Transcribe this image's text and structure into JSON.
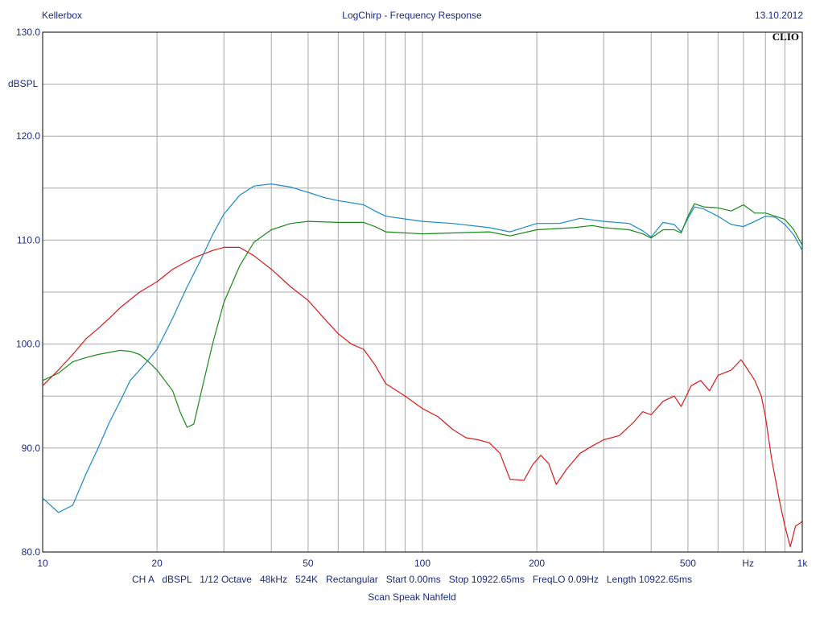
{
  "header": {
    "left": "Kellerbox",
    "center": "LogChirp - Frequency Response",
    "right": "13.10.2012"
  },
  "logo_text": "CLIO",
  "info_line": "CH A   dBSPL   1/12 Octave   48kHz   524K   Rectangular   Start 0.00ms   Stop 10922.65ms   FreqLO 0.09Hz   Length 10922.65ms",
  "subtitle": "Scan Speak Nahfeld",
  "chart_data": {
    "type": "line",
    "x_scale": "log",
    "xlim": [
      10,
      1000
    ],
    "ylim": [
      80,
      130
    ],
    "ylabel": "dBSPL",
    "xunit_label": "Hz",
    "grid": true,
    "x_tick_labels": [
      {
        "value": 10,
        "label": "10"
      },
      {
        "value": 20,
        "label": "20"
      },
      {
        "value": 50,
        "label": "50"
      },
      {
        "value": 100,
        "label": "100"
      },
      {
        "value": 200,
        "label": "200"
      },
      {
        "value": 500,
        "label": "500"
      },
      {
        "value": 1000,
        "label": "1k"
      }
    ],
    "y_tick_labels": [
      {
        "value": 130,
        "label": "130.0"
      },
      {
        "value": 120,
        "label": "120.0"
      },
      {
        "value": 110,
        "label": "110.0"
      },
      {
        "value": 100,
        "label": "100.0"
      },
      {
        "value": 90,
        "label": "90.0"
      },
      {
        "value": 80,
        "label": "80.0"
      }
    ],
    "series": [
      {
        "color": "#1a8ac8",
        "points": [
          [
            10,
            85.2
          ],
          [
            11,
            83.8
          ],
          [
            12,
            84.5
          ],
          [
            13,
            87.5
          ],
          [
            14,
            90
          ],
          [
            15,
            92.5
          ],
          [
            16,
            94.5
          ],
          [
            17,
            96.5
          ],
          [
            18,
            97.5
          ],
          [
            19,
            98.5
          ],
          [
            20,
            99.5
          ],
          [
            22,
            102.5
          ],
          [
            24,
            105.5
          ],
          [
            26,
            108
          ],
          [
            28,
            110.5
          ],
          [
            30,
            112.5
          ],
          [
            33,
            114.3
          ],
          [
            36,
            115.2
          ],
          [
            40,
            115.4
          ],
          [
            45,
            115.1
          ],
          [
            50,
            114.6
          ],
          [
            55,
            114.1
          ],
          [
            60,
            113.8
          ],
          [
            70,
            113.4
          ],
          [
            75,
            112.8
          ],
          [
            80,
            112.3
          ],
          [
            100,
            111.8
          ],
          [
            120,
            111.6
          ],
          [
            150,
            111.2
          ],
          [
            170,
            110.8
          ],
          [
            200,
            111.6
          ],
          [
            230,
            111.6
          ],
          [
            260,
            112.1
          ],
          [
            300,
            111.8
          ],
          [
            350,
            111.6
          ],
          [
            380,
            110.9
          ],
          [
            400,
            110.3
          ],
          [
            430,
            111.7
          ],
          [
            460,
            111.5
          ],
          [
            480,
            110.8
          ],
          [
            500,
            112.1
          ],
          [
            520,
            113.2
          ],
          [
            550,
            113
          ],
          [
            600,
            112.3
          ],
          [
            650,
            111.5
          ],
          [
            700,
            111.3
          ],
          [
            750,
            111.8
          ],
          [
            800,
            112.3
          ],
          [
            850,
            112.2
          ],
          [
            900,
            111.5
          ],
          [
            950,
            110.5
          ],
          [
            1000,
            109
          ]
        ]
      },
      {
        "color": "#1a8a1a",
        "points": [
          [
            10,
            96.5
          ],
          [
            11,
            97.2
          ],
          [
            12,
            98.3
          ],
          [
            13,
            98.7
          ],
          [
            14,
            99
          ],
          [
            15,
            99.2
          ],
          [
            16,
            99.4
          ],
          [
            17,
            99.3
          ],
          [
            18,
            99
          ],
          [
            19,
            98.3
          ],
          [
            20,
            97.5
          ],
          [
            22,
            95.5
          ],
          [
            23,
            93.5
          ],
          [
            24,
            92
          ],
          [
            25,
            92.3
          ],
          [
            26,
            95
          ],
          [
            28,
            100
          ],
          [
            30,
            104
          ],
          [
            33,
            107.5
          ],
          [
            36,
            109.8
          ],
          [
            40,
            111
          ],
          [
            45,
            111.6
          ],
          [
            50,
            111.8
          ],
          [
            60,
            111.7
          ],
          [
            70,
            111.7
          ],
          [
            75,
            111.3
          ],
          [
            80,
            110.8
          ],
          [
            100,
            110.6
          ],
          [
            150,
            110.8
          ],
          [
            170,
            110.4
          ],
          [
            200,
            111
          ],
          [
            250,
            111.2
          ],
          [
            280,
            111.4
          ],
          [
            300,
            111.2
          ],
          [
            350,
            111
          ],
          [
            380,
            110.6
          ],
          [
            400,
            110.2
          ],
          [
            430,
            111
          ],
          [
            460,
            111
          ],
          [
            480,
            110.7
          ],
          [
            500,
            112.3
          ],
          [
            520,
            113.5
          ],
          [
            550,
            113.2
          ],
          [
            600,
            113.1
          ],
          [
            650,
            112.8
          ],
          [
            700,
            113.4
          ],
          [
            750,
            112.6
          ],
          [
            800,
            112.6
          ],
          [
            900,
            112
          ],
          [
            950,
            111
          ],
          [
            1000,
            109.5
          ]
        ]
      },
      {
        "color": "#d81c1c",
        "points": [
          [
            10,
            96
          ],
          [
            11,
            97.5
          ],
          [
            12,
            99
          ],
          [
            13,
            100.5
          ],
          [
            14,
            101.5
          ],
          [
            15,
            102.5
          ],
          [
            16,
            103.5
          ],
          [
            18,
            105
          ],
          [
            20,
            106
          ],
          [
            22,
            107.2
          ],
          [
            25,
            108.3
          ],
          [
            28,
            109
          ],
          [
            30,
            109.3
          ],
          [
            33,
            109.3
          ],
          [
            36,
            108.5
          ],
          [
            40,
            107.2
          ],
          [
            45,
            105.5
          ],
          [
            50,
            104.2
          ],
          [
            55,
            102.5
          ],
          [
            60,
            101
          ],
          [
            65,
            100
          ],
          [
            70,
            99.5
          ],
          [
            75,
            98
          ],
          [
            80,
            96.2
          ],
          [
            90,
            95
          ],
          [
            100,
            93.8
          ],
          [
            110,
            93
          ],
          [
            120,
            91.8
          ],
          [
            130,
            91
          ],
          [
            140,
            90.8
          ],
          [
            150,
            90.5
          ],
          [
            160,
            89.5
          ],
          [
            170,
            87
          ],
          [
            185,
            86.9
          ],
          [
            195,
            88.4
          ],
          [
            205,
            89.3
          ],
          [
            215,
            88.5
          ],
          [
            225,
            86.5
          ],
          [
            240,
            88
          ],
          [
            260,
            89.5
          ],
          [
            280,
            90.2
          ],
          [
            300,
            90.8
          ],
          [
            330,
            91.2
          ],
          [
            360,
            92.5
          ],
          [
            380,
            93.5
          ],
          [
            400,
            93.2
          ],
          [
            430,
            94.5
          ],
          [
            460,
            95
          ],
          [
            480,
            94
          ],
          [
            510,
            96
          ],
          [
            540,
            96.5
          ],
          [
            570,
            95.5
          ],
          [
            600,
            97
          ],
          [
            650,
            97.5
          ],
          [
            690,
            98.5
          ],
          [
            720,
            97.5
          ],
          [
            750,
            96.5
          ],
          [
            780,
            95
          ],
          [
            800,
            93
          ],
          [
            830,
            89
          ],
          [
            870,
            85
          ],
          [
            900,
            82.5
          ],
          [
            930,
            80.5
          ],
          [
            960,
            82.5
          ],
          [
            990,
            82.8
          ],
          [
            1000,
            83
          ]
        ]
      }
    ]
  }
}
